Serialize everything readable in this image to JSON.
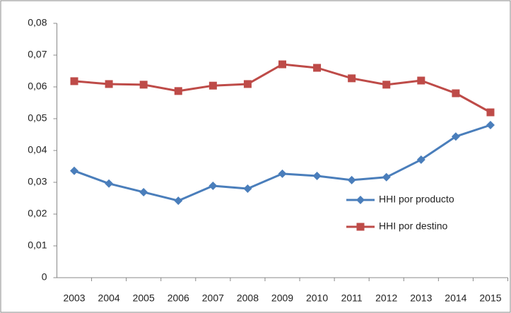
{
  "chart_data": {
    "type": "line",
    "categories": [
      "2003",
      "2004",
      "2005",
      "2006",
      "2007",
      "2008",
      "2009",
      "2010",
      "2011",
      "2012",
      "2013",
      "2014",
      "2015"
    ],
    "series": [
      {
        "name": "HHI por producto",
        "color": "#4a7ebb",
        "marker": "diamond",
        "values": [
          0.0336,
          0.0296,
          0.0269,
          0.0242,
          0.0289,
          0.028,
          0.0327,
          0.032,
          0.0307,
          0.0316,
          0.0371,
          0.0444,
          0.048
        ]
      },
      {
        "name": "HHI por destino",
        "color": "#be4b48",
        "marker": "square",
        "values": [
          0.0618,
          0.0609,
          0.0607,
          0.0587,
          0.0604,
          0.0609,
          0.0671,
          0.066,
          0.0627,
          0.0607,
          0.062,
          0.058,
          0.052
        ]
      }
    ],
    "ylim": [
      0,
      0.08
    ],
    "yticks": [
      0,
      {
        "value": 0.01,
        "label": "0,01"
      },
      {
        "value": 0.02,
        "label": "0,02"
      },
      {
        "value": 0.03,
        "label": "0,03"
      },
      {
        "value": 0.04,
        "label": "0,04"
      },
      {
        "value": 0.05,
        "label": "0,05"
      },
      {
        "value": 0.06,
        "label": "0,06"
      },
      {
        "value": 0.07,
        "label": "0,07"
      },
      {
        "value": 0.08,
        "label": "0,08"
      }
    ],
    "grid": false,
    "legend": "center-right"
  }
}
